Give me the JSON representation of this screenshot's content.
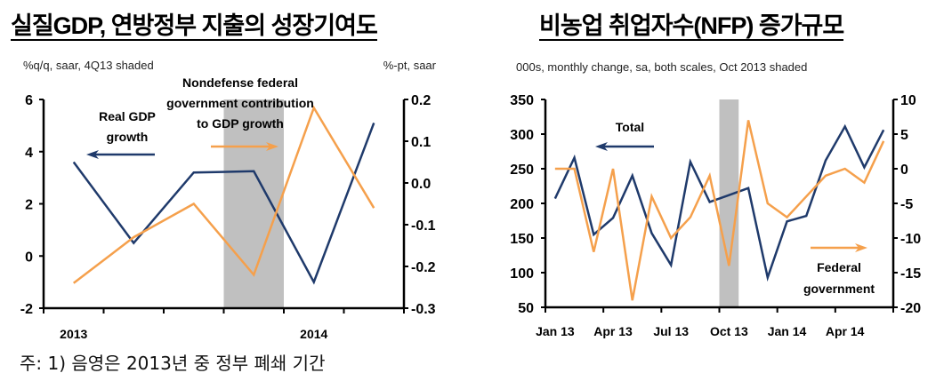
{
  "titles": {
    "left": "실질GDP, 연방정부 지출의 성장기여도",
    "right": "비농업 취업자수(NFP) 증가규모"
  },
  "footnote": "주: 1) 음영은 2013년 중 정부 폐쇄 기간",
  "colors": {
    "navy": "#1f3a6b",
    "orange": "#f5a04c",
    "shade": "#c0c0c0"
  },
  "chart_data": [
    {
      "type": "line",
      "subtitle_left": "%q/q, saar, 4Q13 shaded",
      "subtitle_right": "%-pt, saar",
      "x": [
        "1Q13",
        "2Q13",
        "3Q13",
        "4Q13",
        "1Q14",
        "2Q14"
      ],
      "xtick_labels": [
        {
          "at": "1Q13",
          "label": "2013"
        },
        {
          "at": "1Q14",
          "label": "2014"
        }
      ],
      "shaded": "4Q13",
      "ylim_left": [
        -2,
        6
      ],
      "yticks_left": [
        "6",
        "4",
        "2",
        "0",
        "-2"
      ],
      "ylim_right": [
        -0.3,
        0.2
      ],
      "yticks_right": [
        "0.2",
        "0.1",
        "0.0",
        "-0.1",
        "-0.2",
        "-0.3"
      ],
      "series": [
        {
          "label_lines": [
            "Real GDP",
            "growth"
          ],
          "axis": "left",
          "color": "#1f3a6b",
          "values": [
            3.6,
            0.5,
            3.2,
            3.25,
            -1.0,
            5.1
          ]
        },
        {
          "label_lines": [
            "Nondefense federal",
            "government contribution",
            "to GDP growth"
          ],
          "axis": "right",
          "color": "#f5a04c",
          "values": [
            -0.24,
            -0.13,
            -0.05,
            -0.22,
            0.18,
            -0.06
          ]
        }
      ]
    },
    {
      "type": "line",
      "subtitle_left": "000s, monthly change, sa,  both scales, Oct 2013 shaded",
      "x": [
        "Jan 13",
        "Feb 13",
        "Mar 13",
        "Apr 13",
        "May 13",
        "Jun 13",
        "Jul 13",
        "Aug 13",
        "Sep 13",
        "Oct 13",
        "Nov 13",
        "Dec 13",
        "Jan 14",
        "Feb 14",
        "Mar 14",
        "Apr 14",
        "May 14",
        "Jun 14"
      ],
      "xtick_labels": [
        {
          "at": "Jan 13",
          "label": "Jan 13"
        },
        {
          "at": "Apr 13",
          "label": "Apr 13"
        },
        {
          "at": "Jul 13",
          "label": "Jul 13"
        },
        {
          "at": "Oct 13",
          "label": "Oct 13"
        },
        {
          "at": "Jan 14",
          "label": "Jan 14"
        },
        {
          "at": "Apr 14",
          "label": "Apr 14"
        }
      ],
      "shaded": "Oct 13",
      "ylim_left": [
        50,
        350
      ],
      "yticks_left": [
        "350",
        "300",
        "250",
        "200",
        "150",
        "100",
        "50"
      ],
      "ylim_right": [
        -20,
        10
      ],
      "yticks_right": [
        "10",
        "5",
        "0",
        "-5",
        "-10",
        "-15",
        "-20"
      ],
      "series": [
        {
          "label_lines": [
            "Total"
          ],
          "axis": "left",
          "color": "#1f3a6b",
          "values": [
            207,
            266,
            155,
            179,
            240,
            157,
            111,
            260,
            202,
            212,
            222,
            93,
            174,
            182,
            262,
            311,
            252,
            306
          ]
        },
        {
          "label_lines": [
            "Federal",
            "government"
          ],
          "axis": "right",
          "color": "#f5a04c",
          "values": [
            0,
            0,
            -12,
            0,
            -19,
            -4,
            -10,
            -7,
            -1,
            -14,
            7,
            -5,
            -7,
            -4,
            -1,
            0,
            -2,
            4
          ]
        }
      ]
    }
  ]
}
